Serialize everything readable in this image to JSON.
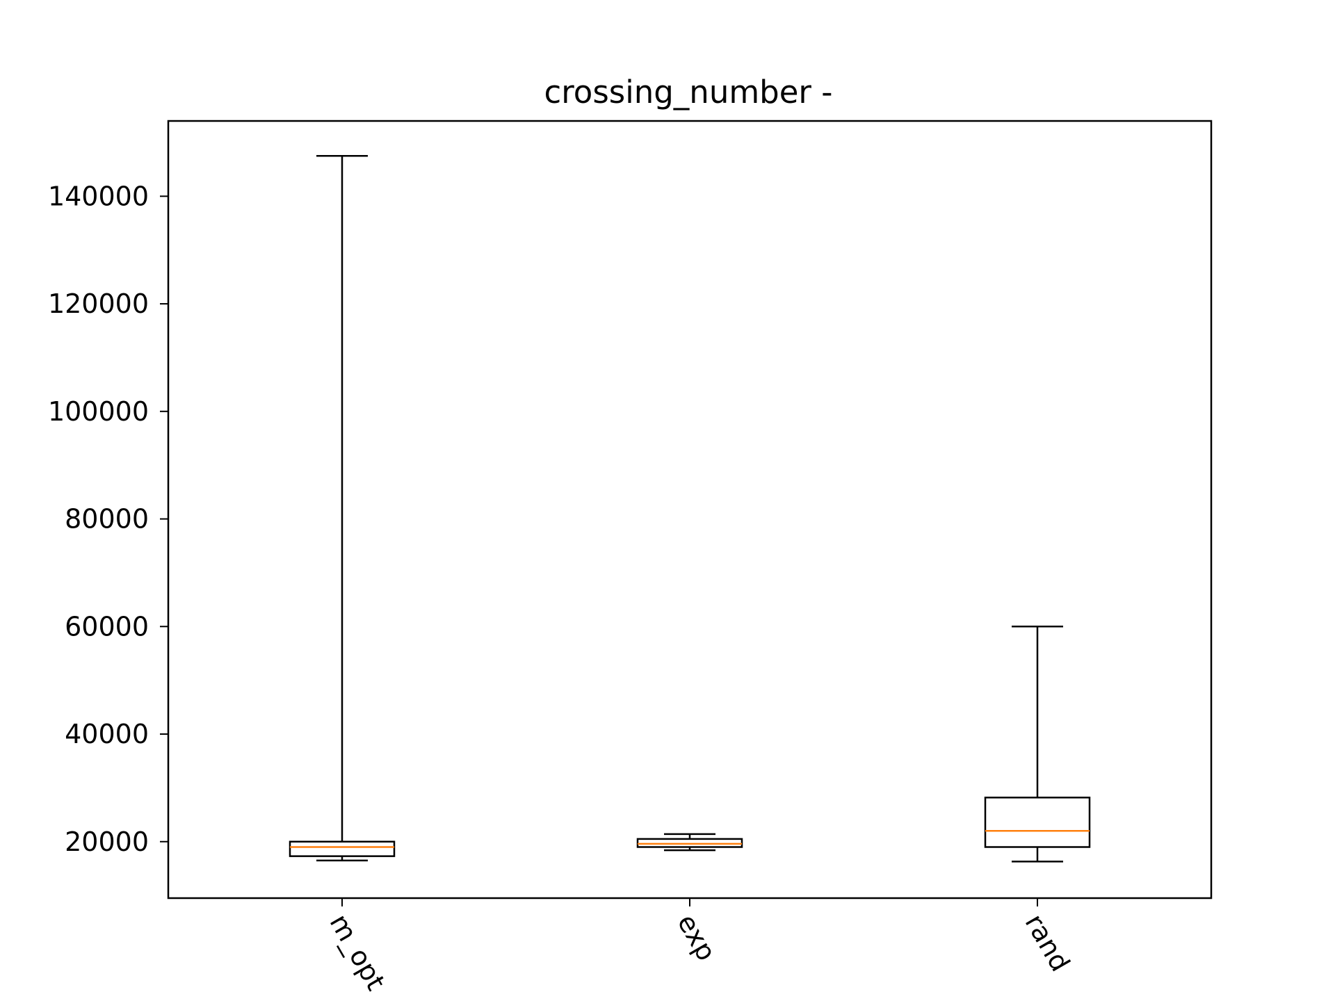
{
  "chart_data": {
    "type": "box",
    "title": "crossing_number -",
    "xlabel": "",
    "ylabel": "",
    "categories": [
      "m_opt",
      "exp",
      "rand"
    ],
    "boxes": [
      {
        "name": "m_opt",
        "whisker_low": 16500,
        "q1": 17300,
        "median": 19000,
        "q3": 20000,
        "whisker_high": 147500
      },
      {
        "name": "exp",
        "whisker_low": 18400,
        "q1": 19000,
        "median": 19600,
        "q3": 20500,
        "whisker_high": 21400
      },
      {
        "name": "rand",
        "whisker_low": 16300,
        "q1": 19000,
        "median": 22000,
        "q3": 28200,
        "whisker_high": 60000
      }
    ],
    "ylim": [
      9500,
      154000
    ],
    "yticks": [
      20000,
      40000,
      60000,
      80000,
      100000,
      120000,
      140000
    ],
    "ytick_labels": [
      "20000",
      "40000",
      "60000",
      "80000",
      "100000",
      "120000",
      "140000"
    ],
    "xtick_rotation": "-60deg",
    "grid": false,
    "legend": "none",
    "colors": {
      "box": "#000000",
      "median": "#ff7f0e",
      "background": "#ffffff"
    }
  }
}
